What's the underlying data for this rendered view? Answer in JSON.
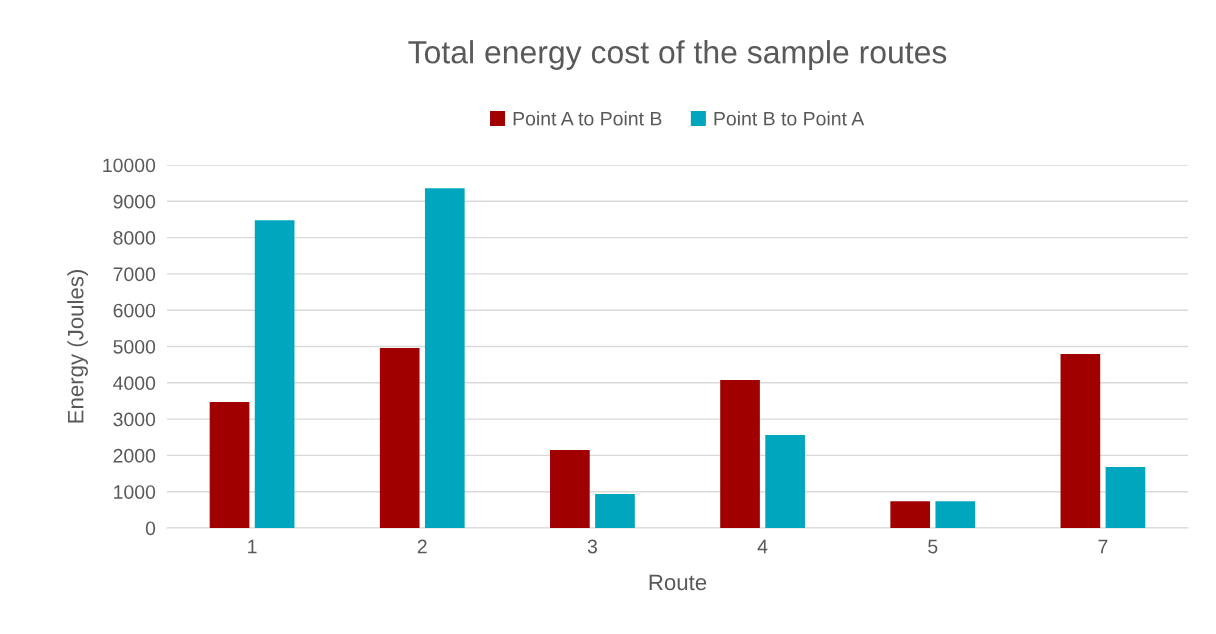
{
  "chart_data": {
    "type": "bar",
    "title": "Total energy cost of the sample routes",
    "xlabel": "Route",
    "ylabel": "Energy (Joules)",
    "categories": [
      "1",
      "2",
      "3",
      "4",
      "5",
      "7"
    ],
    "series": [
      {
        "name": "Point A to Point B",
        "color": "#a00000",
        "values": [
          3470,
          4960,
          2150,
          4080,
          740,
          4790
        ]
      },
      {
        "name": "Point B to Point A",
        "color": "#00a6be",
        "values": [
          8480,
          9360,
          940,
          2560,
          740,
          1680
        ]
      }
    ],
    "ylim": [
      0,
      10000
    ],
    "yticks": [
      0,
      1000,
      2000,
      3000,
      4000,
      5000,
      6000,
      7000,
      8000,
      9000,
      10000
    ],
    "grid": "y",
    "legend": "top"
  }
}
